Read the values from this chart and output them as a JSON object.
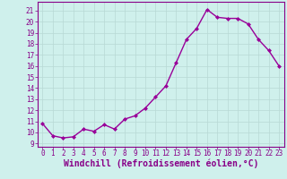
{
  "x": [
    0,
    1,
    2,
    3,
    4,
    5,
    6,
    7,
    8,
    9,
    10,
    11,
    12,
    13,
    14,
    15,
    16,
    17,
    18,
    19,
    20,
    21,
    22,
    23
  ],
  "y": [
    10.8,
    9.7,
    9.5,
    9.6,
    10.3,
    10.1,
    10.7,
    10.3,
    11.2,
    11.5,
    12.2,
    13.2,
    14.2,
    16.3,
    18.4,
    19.4,
    21.1,
    20.4,
    20.3,
    20.3,
    19.8,
    18.4,
    17.4,
    16.0
  ],
  "line_color": "#990099",
  "marker": "D",
  "marker_size": 2.0,
  "linewidth": 1.0,
  "bg_color": "#cff0ec",
  "grid_color": "#b8d8d4",
  "xlabel": "Windchill (Refroidissement éolien,°C)",
  "xlim": [
    -0.5,
    23.5
  ],
  "ylim": [
    8.7,
    21.8
  ],
  "yticks": [
    9,
    10,
    11,
    12,
    13,
    14,
    15,
    16,
    17,
    18,
    19,
    20,
    21
  ],
  "xticks": [
    0,
    1,
    2,
    3,
    4,
    5,
    6,
    7,
    8,
    9,
    10,
    11,
    12,
    13,
    14,
    15,
    16,
    17,
    18,
    19,
    20,
    21,
    22,
    23
  ],
  "tick_fontsize": 5.5,
  "xlabel_fontsize": 7.0,
  "axis_color": "#880088",
  "spine_color": "#880088"
}
